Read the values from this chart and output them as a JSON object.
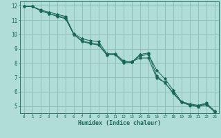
{
  "xlabel": "Humidex (Indice chaleur)",
  "bg_color": "#b0ddd8",
  "grid_color": "#88bbb0",
  "line_color": "#1a6655",
  "xlim": [
    -0.5,
    23.5
  ],
  "ylim": [
    4.5,
    12.3
  ],
  "xticks": [
    0,
    1,
    2,
    3,
    4,
    5,
    6,
    7,
    8,
    9,
    10,
    11,
    12,
    13,
    14,
    15,
    16,
    17,
    18,
    19,
    20,
    21,
    22,
    23
  ],
  "yticks": [
    5,
    6,
    7,
    8,
    9,
    10,
    11,
    12
  ],
  "line1_x": [
    0,
    1,
    2,
    3,
    4,
    5,
    6,
    7,
    8,
    9,
    10,
    11,
    12,
    13,
    14,
    15,
    16,
    17,
    18,
    19,
    20,
    21,
    22,
    23
  ],
  "line1_y": [
    11.95,
    11.95,
    11.7,
    11.55,
    11.4,
    11.25,
    10.05,
    9.7,
    9.55,
    9.5,
    8.65,
    8.65,
    8.15,
    8.05,
    8.5,
    8.6,
    7.5,
    6.9,
    6.1,
    5.3,
    5.15,
    5.05,
    5.2,
    4.65
  ],
  "line2_x": [
    0,
    1,
    2,
    3,
    4,
    5,
    6,
    7,
    8,
    9,
    10,
    11,
    12,
    13,
    14,
    15,
    16,
    17,
    18,
    19,
    20,
    21,
    22,
    23
  ],
  "line2_y": [
    11.95,
    11.95,
    11.65,
    11.45,
    11.3,
    11.15,
    10.0,
    9.5,
    9.35,
    9.25,
    8.55,
    8.6,
    8.0,
    8.05,
    8.6,
    8.7,
    7.1,
    6.6,
    5.95,
    5.25,
    5.1,
    5.0,
    5.15,
    4.6
  ],
  "line3_x": [
    0,
    1,
    2,
    3,
    4,
    5,
    6,
    7,
    8,
    9,
    10,
    11,
    12,
    13,
    14,
    15,
    16,
    17,
    18,
    19,
    20,
    21,
    22,
    23
  ],
  "line3_y": [
    11.95,
    11.95,
    11.65,
    11.45,
    11.25,
    11.1,
    10.0,
    9.55,
    9.4,
    9.3,
    8.58,
    8.58,
    8.05,
    8.1,
    8.35,
    8.35,
    6.95,
    6.65,
    5.88,
    5.25,
    5.05,
    4.95,
    5.1,
    4.6
  ]
}
